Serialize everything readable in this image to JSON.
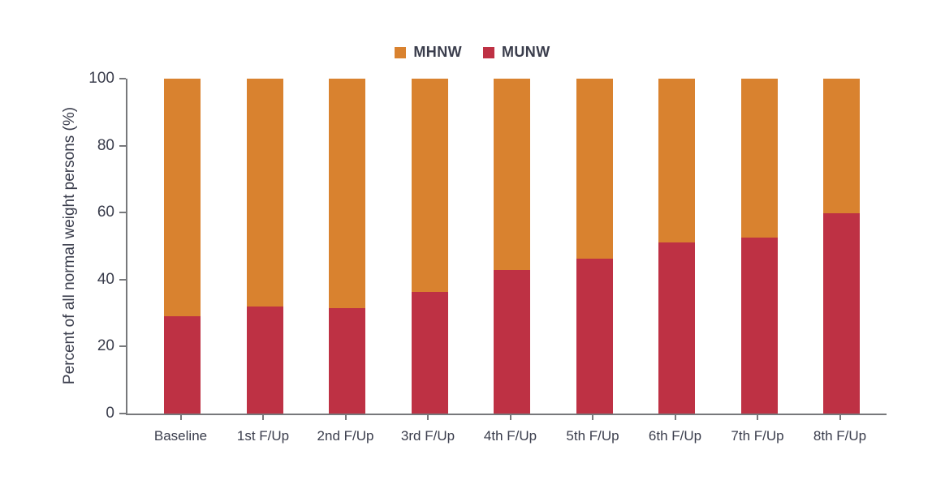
{
  "chart_data": {
    "type": "bar",
    "stacked": true,
    "title": "",
    "xlabel": "",
    "ylabel": "Percent of all normal weight persons (%)",
    "ylim": [
      0,
      100
    ],
    "yticks": [
      0,
      20,
      40,
      60,
      80,
      100
    ],
    "grid": false,
    "legend_position": "top-center",
    "categories": [
      "Baseline",
      "1st F/Up",
      "2nd F/Up",
      "3rd F/Up",
      "4th F/Up",
      "5th F/Up",
      "6th F/Up",
      "7th F/Up",
      "8th F/Up"
    ],
    "series": [
      {
        "name": "MHNW",
        "color": "#D9822F",
        "values": [
          71.0,
          68.0,
          68.5,
          63.8,
          57.1,
          53.7,
          49.0,
          47.5,
          40.3
        ]
      },
      {
        "name": "MUNW",
        "color": "#BE3144",
        "values": [
          29.0,
          32.0,
          31.5,
          36.2,
          42.9,
          46.3,
          51.0,
          52.5,
          59.7
        ]
      }
    ],
    "colors": {
      "axis": "#77787b",
      "text": "#3a3d4c",
      "background": "#ffffff"
    }
  }
}
